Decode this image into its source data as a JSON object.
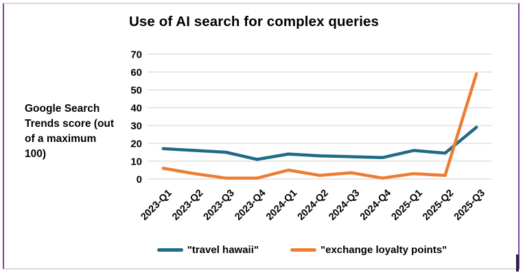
{
  "frame": {
    "side_border_color": "#7B3FA0",
    "top_bottom_border_color": "#D9D9D9",
    "artifact_color": "#32204A"
  },
  "chart_data": {
    "type": "line",
    "title": "Use of AI search for complex queries",
    "ylabel": "Google Search\nTrends score (out\nof a maximum\n100)",
    "xlabel": "",
    "categories": [
      "2023-Q1",
      "2023-Q2",
      "2023-Q3",
      "2023-Q4",
      "2024-Q1",
      "2024-Q2",
      "2024-Q3",
      "2024-Q4",
      "2025-Q1",
      "2025-Q2",
      "2025-Q3"
    ],
    "series": [
      {
        "name": "\"travel hawaii\"",
        "color": "#1F6B85",
        "values": [
          17,
          16,
          15,
          11,
          14,
          13,
          12.5,
          12,
          16,
          14.5,
          29
        ]
      },
      {
        "name": "\"exchange loyalty points\"",
        "color": "#ED7D31",
        "values": [
          6,
          3,
          0.5,
          0.5,
          5,
          2,
          3.5,
          0.5,
          3,
          2,
          59
        ]
      }
    ],
    "ylim": [
      0,
      70
    ],
    "yticks": [
      0,
      10,
      20,
      30,
      40,
      50,
      60,
      70
    ],
    "grid": "horizontal",
    "gridline_color": "#D9D9D9",
    "text_color": "#000000",
    "legend_position": "bottom"
  }
}
